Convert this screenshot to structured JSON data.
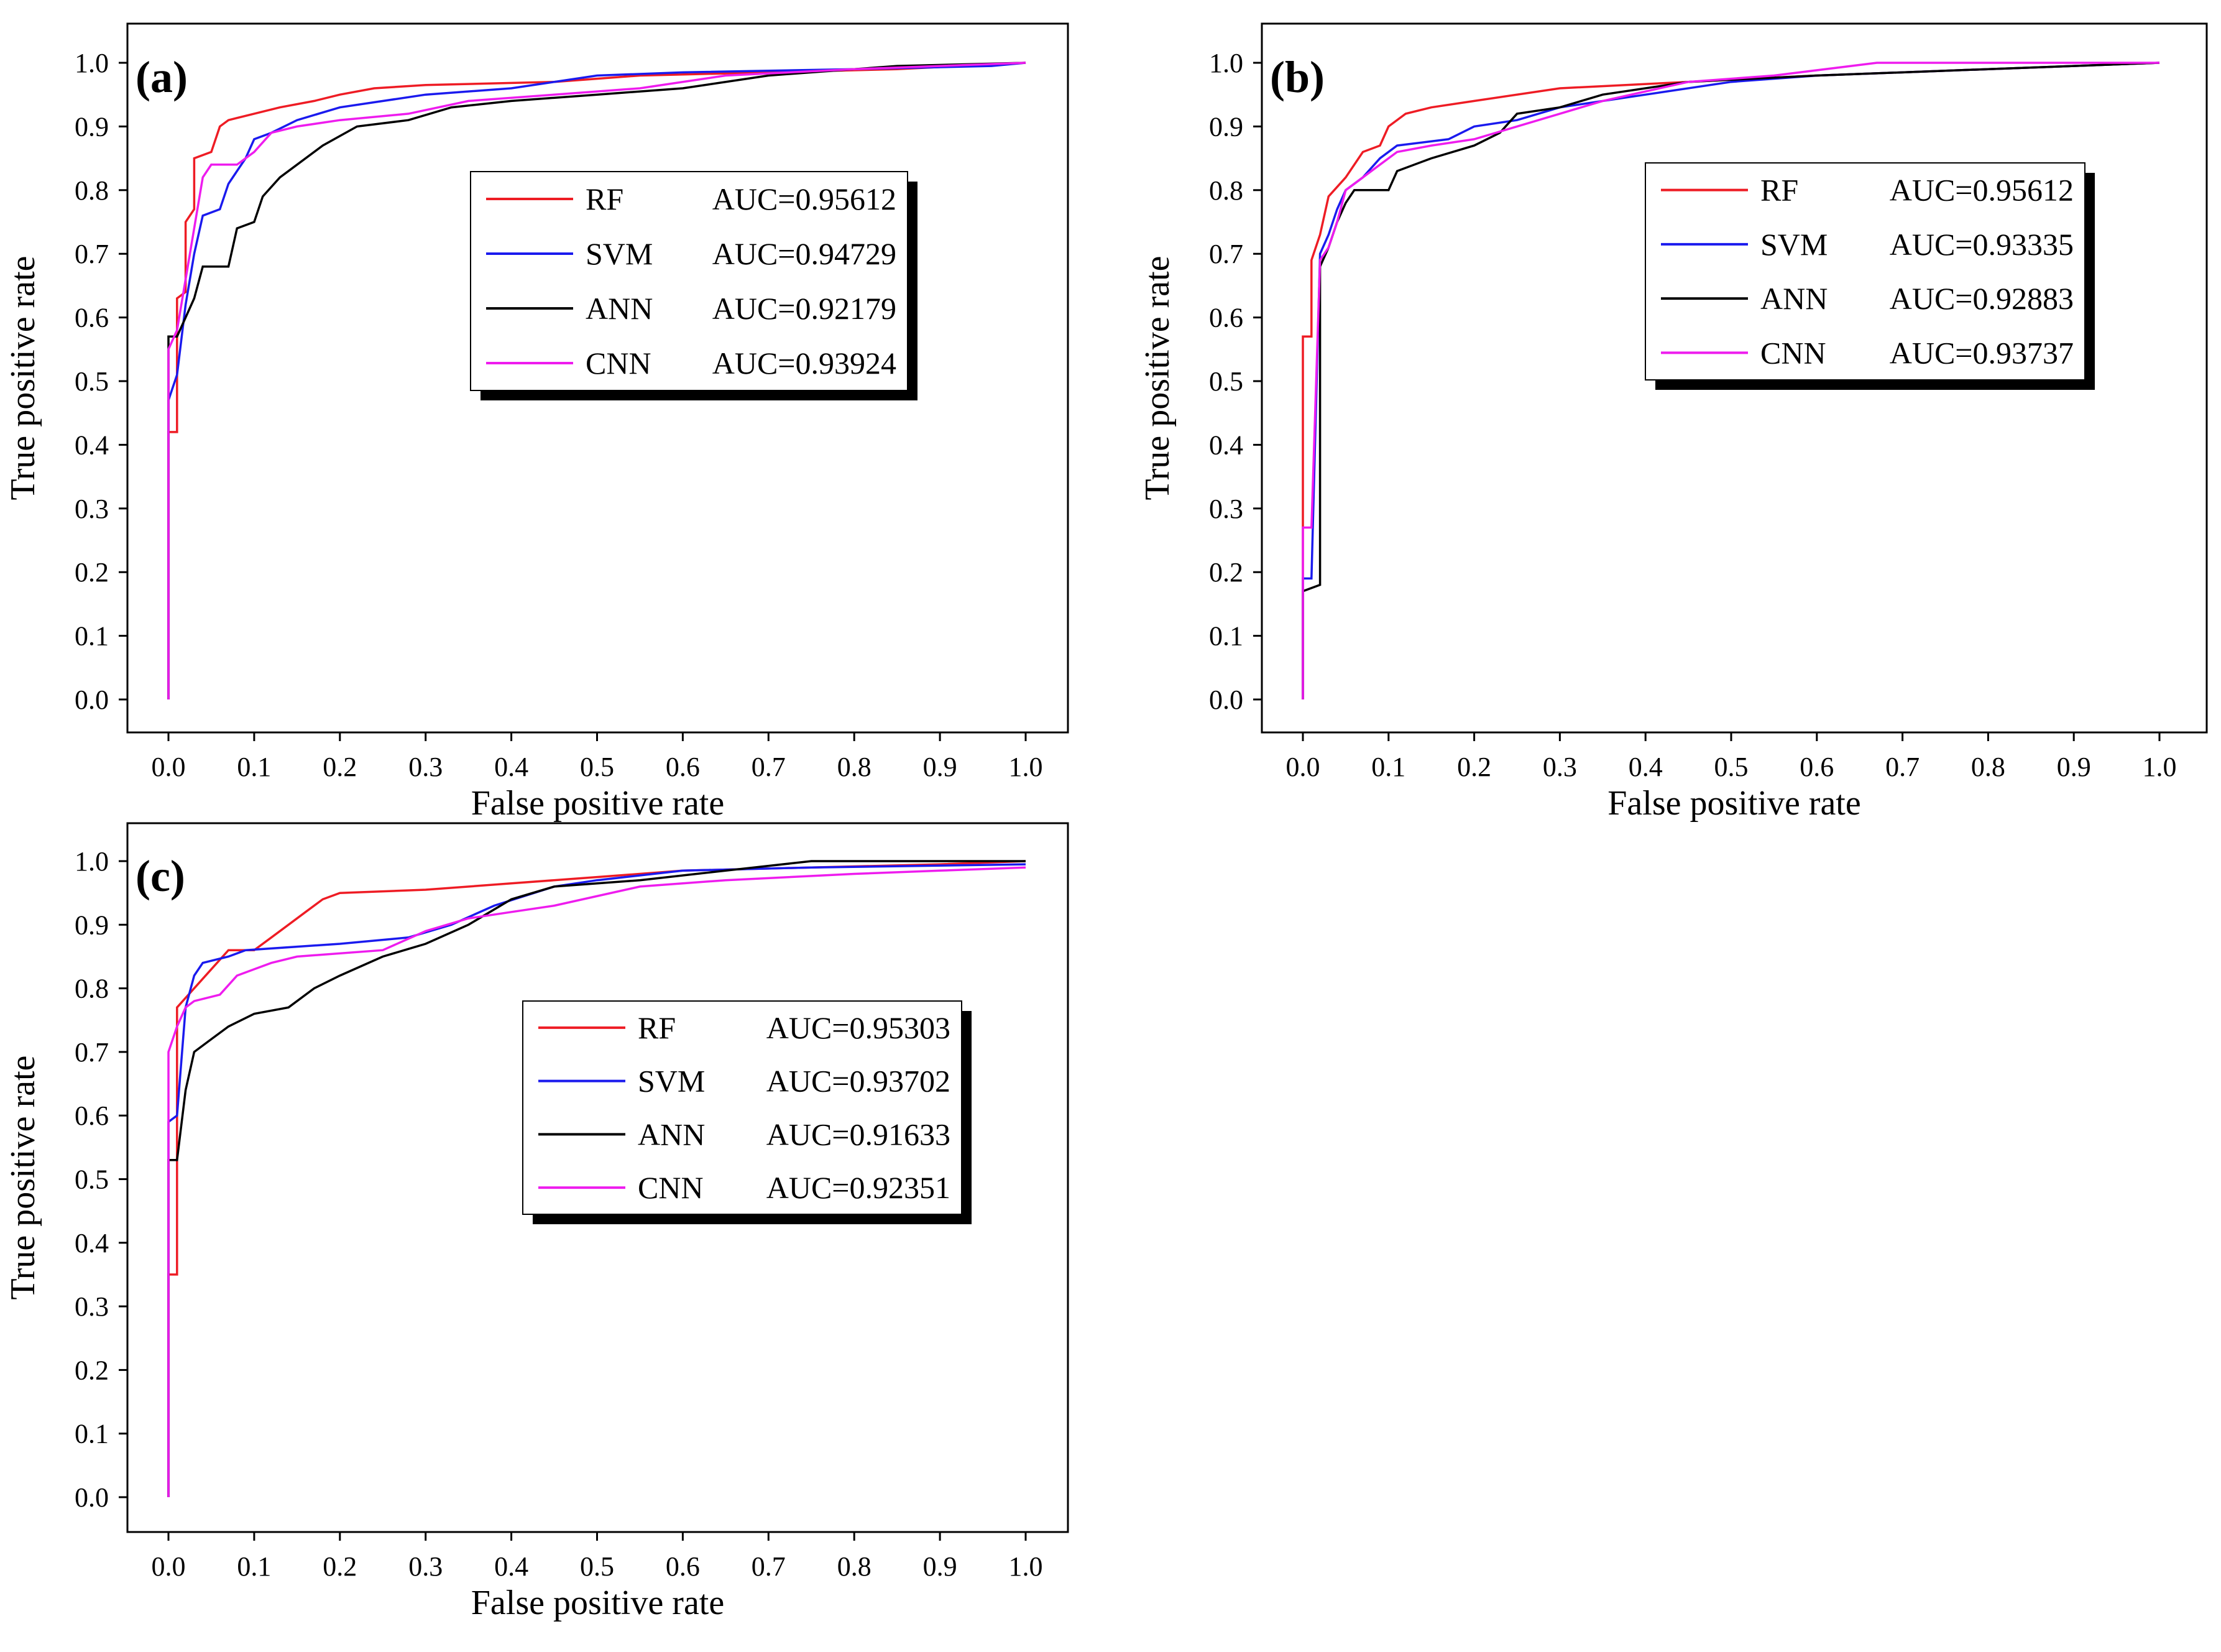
{
  "figure": {
    "description_labels": [
      "(a)",
      "(b)",
      "(c)"
    ]
  },
  "colors": {
    "RF": "#ee1c24",
    "SVM": "#1a1aee",
    "ANN": "#000000",
    "CNN": "#ee1cee"
  },
  "chart_data": [
    {
      "type": "line",
      "panel_label": "(a)",
      "xlabel": "False positive rate",
      "ylabel": "True positive rate",
      "xlim": [
        0,
        1
      ],
      "ylim": [
        0,
        1
      ],
      "xticks": [
        "0.0",
        "0.1",
        "0.2",
        "0.3",
        "0.4",
        "0.5",
        "0.6",
        "0.7",
        "0.8",
        "0.9",
        "1.0"
      ],
      "yticks": [
        "0.0",
        "0.1",
        "0.2",
        "0.3",
        "0.4",
        "0.5",
        "0.6",
        "0.7",
        "0.8",
        "0.9",
        "1.0"
      ],
      "grid": false,
      "legend_position": "center-right",
      "series": [
        {
          "name": "RF",
          "auc_label": "AUC=0.95612",
          "points": [
            [
              0,
              0
            ],
            [
              0,
              0.42
            ],
            [
              0.01,
              0.42
            ],
            [
              0.01,
              0.63
            ],
            [
              0.02,
              0.64
            ],
            [
              0.02,
              0.75
            ],
            [
              0.03,
              0.77
            ],
            [
              0.03,
              0.85
            ],
            [
              0.05,
              0.86
            ],
            [
              0.06,
              0.9
            ],
            [
              0.07,
              0.91
            ],
            [
              0.1,
              0.92
            ],
            [
              0.13,
              0.93
            ],
            [
              0.17,
              0.94
            ],
            [
              0.2,
              0.95
            ],
            [
              0.24,
              0.96
            ],
            [
              0.3,
              0.965
            ],
            [
              0.45,
              0.97
            ],
            [
              0.55,
              0.98
            ],
            [
              0.7,
              0.985
            ],
            [
              0.85,
              0.99
            ],
            [
              1,
              1
            ]
          ]
        },
        {
          "name": "SVM",
          "auc_label": "AUC=0.94729",
          "points": [
            [
              0,
              0
            ],
            [
              0,
              0.47
            ],
            [
              0.01,
              0.51
            ],
            [
              0.02,
              0.62
            ],
            [
              0.03,
              0.7
            ],
            [
              0.04,
              0.76
            ],
            [
              0.06,
              0.77
            ],
            [
              0.07,
              0.81
            ],
            [
              0.09,
              0.85
            ],
            [
              0.1,
              0.88
            ],
            [
              0.12,
              0.89
            ],
            [
              0.15,
              0.91
            ],
            [
              0.2,
              0.93
            ],
            [
              0.3,
              0.95
            ],
            [
              0.4,
              0.96
            ],
            [
              0.5,
              0.98
            ],
            [
              0.6,
              0.985
            ],
            [
              0.8,
              0.99
            ],
            [
              0.96,
              0.995
            ],
            [
              1,
              1
            ]
          ]
        },
        {
          "name": "ANN",
          "auc_label": "AUC=0.92179",
          "points": [
            [
              0,
              0
            ],
            [
              0,
              0.57
            ],
            [
              0.01,
              0.57
            ],
            [
              0.02,
              0.6
            ],
            [
              0.03,
              0.63
            ],
            [
              0.04,
              0.68
            ],
            [
              0.07,
              0.68
            ],
            [
              0.08,
              0.74
            ],
            [
              0.1,
              0.75
            ],
            [
              0.11,
              0.79
            ],
            [
              0.13,
              0.82
            ],
            [
              0.15,
              0.84
            ],
            [
              0.18,
              0.87
            ],
            [
              0.22,
              0.9
            ],
            [
              0.28,
              0.91
            ],
            [
              0.33,
              0.93
            ],
            [
              0.4,
              0.94
            ],
            [
              0.5,
              0.95
            ],
            [
              0.6,
              0.96
            ],
            [
              0.7,
              0.98
            ],
            [
              0.85,
              0.995
            ],
            [
              1,
              1
            ]
          ]
        },
        {
          "name": "CNN",
          "auc_label": "AUC=0.93924",
          "points": [
            [
              0,
              0
            ],
            [
              0,
              0.55
            ],
            [
              0.01,
              0.58
            ],
            [
              0.02,
              0.66
            ],
            [
              0.03,
              0.74
            ],
            [
              0.04,
              0.82
            ],
            [
              0.05,
              0.84
            ],
            [
              0.08,
              0.84
            ],
            [
              0.1,
              0.86
            ],
            [
              0.12,
              0.89
            ],
            [
              0.15,
              0.9
            ],
            [
              0.2,
              0.91
            ],
            [
              0.28,
              0.92
            ],
            [
              0.35,
              0.94
            ],
            [
              0.45,
              0.95
            ],
            [
              0.55,
              0.96
            ],
            [
              0.65,
              0.98
            ],
            [
              0.8,
              0.99
            ],
            [
              1,
              1
            ]
          ]
        }
      ]
    },
    {
      "type": "line",
      "panel_label": "(b)",
      "xlabel": "False positive rate",
      "ylabel": "True positive rate",
      "xlim": [
        0,
        1
      ],
      "ylim": [
        0,
        1
      ],
      "xticks": [
        "0.0",
        "0.1",
        "0.2",
        "0.3",
        "0.4",
        "0.5",
        "0.6",
        "0.7",
        "0.8",
        "0.9",
        "1.0"
      ],
      "yticks": [
        "0.0",
        "0.1",
        "0.2",
        "0.3",
        "0.4",
        "0.5",
        "0.6",
        "0.7",
        "0.8",
        "0.9",
        "1.0"
      ],
      "grid": false,
      "legend_position": "top-right",
      "series": [
        {
          "name": "RF",
          "auc_label": "AUC=0.95612",
          "points": [
            [
              0,
              0
            ],
            [
              0,
              0.57
            ],
            [
              0.01,
              0.57
            ],
            [
              0.01,
              0.69
            ],
            [
              0.02,
              0.73
            ],
            [
              0.03,
              0.79
            ],
            [
              0.05,
              0.82
            ],
            [
              0.07,
              0.86
            ],
            [
              0.09,
              0.87
            ],
            [
              0.1,
              0.9
            ],
            [
              0.12,
              0.92
            ],
            [
              0.15,
              0.93
            ],
            [
              0.2,
              0.94
            ],
            [
              0.3,
              0.96
            ],
            [
              0.45,
              0.97
            ],
            [
              0.6,
              0.98
            ],
            [
              0.8,
              0.99
            ],
            [
              1,
              1
            ]
          ]
        },
        {
          "name": "SVM",
          "auc_label": "AUC=0.93335",
          "points": [
            [
              0,
              0
            ],
            [
              0,
              0.19
            ],
            [
              0.01,
              0.19
            ],
            [
              0.02,
              0.7
            ],
            [
              0.03,
              0.73
            ],
            [
              0.04,
              0.77
            ],
            [
              0.05,
              0.8
            ],
            [
              0.07,
              0.82
            ],
            [
              0.09,
              0.85
            ],
            [
              0.11,
              0.87
            ],
            [
              0.17,
              0.88
            ],
            [
              0.2,
              0.9
            ],
            [
              0.25,
              0.91
            ],
            [
              0.3,
              0.93
            ],
            [
              0.4,
              0.95
            ],
            [
              0.5,
              0.97
            ],
            [
              0.6,
              0.98
            ],
            [
              0.8,
              0.99
            ],
            [
              1,
              1
            ]
          ]
        },
        {
          "name": "ANN",
          "auc_label": "AUC=0.92883",
          "points": [
            [
              0,
              0
            ],
            [
              0,
              0.17
            ],
            [
              0.02,
              0.18
            ],
            [
              0.02,
              0.68
            ],
            [
              0.03,
              0.71
            ],
            [
              0.04,
              0.75
            ],
            [
              0.05,
              0.78
            ],
            [
              0.06,
              0.8
            ],
            [
              0.1,
              0.8
            ],
            [
              0.11,
              0.83
            ],
            [
              0.15,
              0.85
            ],
            [
              0.2,
              0.87
            ],
            [
              0.23,
              0.89
            ],
            [
              0.25,
              0.92
            ],
            [
              0.3,
              0.93
            ],
            [
              0.35,
              0.95
            ],
            [
              0.45,
              0.97
            ],
            [
              0.6,
              0.98
            ],
            [
              0.8,
              0.99
            ],
            [
              0.9,
              0.995
            ],
            [
              1,
              1
            ]
          ]
        },
        {
          "name": "CNN",
          "auc_label": "AUC=0.93737",
          "points": [
            [
              0,
              0
            ],
            [
              0,
              0.27
            ],
            [
              0.01,
              0.27
            ],
            [
              0.02,
              0.69
            ],
            [
              0.03,
              0.71
            ],
            [
              0.04,
              0.75
            ],
            [
              0.05,
              0.8
            ],
            [
              0.07,
              0.82
            ],
            [
              0.09,
              0.84
            ],
            [
              0.11,
              0.86
            ],
            [
              0.15,
              0.87
            ],
            [
              0.2,
              0.88
            ],
            [
              0.25,
              0.9
            ],
            [
              0.3,
              0.92
            ],
            [
              0.35,
              0.94
            ],
            [
              0.45,
              0.97
            ],
            [
              0.55,
              0.98
            ],
            [
              0.67,
              1
            ],
            [
              1,
              1
            ]
          ]
        }
      ]
    },
    {
      "type": "line",
      "panel_label": "(c)",
      "xlabel": "False positive rate",
      "ylabel": "True positive rate",
      "xlim": [
        0,
        1
      ],
      "ylim": [
        0,
        1
      ],
      "xticks": [
        "0.0",
        "0.1",
        "0.2",
        "0.3",
        "0.4",
        "0.5",
        "0.6",
        "0.7",
        "0.8",
        "0.9",
        "1.0"
      ],
      "yticks": [
        "0.0",
        "0.1",
        "0.2",
        "0.3",
        "0.4",
        "0.5",
        "0.6",
        "0.7",
        "0.8",
        "0.9",
        "1.0"
      ],
      "grid": false,
      "legend_position": "center-right",
      "series": [
        {
          "name": "RF",
          "auc_label": "AUC=0.95303",
          "points": [
            [
              0,
              0
            ],
            [
              0,
              0.35
            ],
            [
              0.01,
              0.35
            ],
            [
              0.01,
              0.77
            ],
            [
              0.03,
              0.8
            ],
            [
              0.05,
              0.83
            ],
            [
              0.07,
              0.86
            ],
            [
              0.1,
              0.86
            ],
            [
              0.12,
              0.88
            ],
            [
              0.14,
              0.9
            ],
            [
              0.16,
              0.92
            ],
            [
              0.18,
              0.94
            ],
            [
              0.2,
              0.95
            ],
            [
              0.3,
              0.955
            ],
            [
              0.4,
              0.965
            ],
            [
              0.5,
              0.975
            ],
            [
              0.6,
              0.985
            ],
            [
              0.75,
              0.99
            ],
            [
              0.9,
              0.995
            ],
            [
              1,
              1
            ]
          ]
        },
        {
          "name": "SVM",
          "auc_label": "AUC=0.93702",
          "points": [
            [
              0,
              0
            ],
            [
              0,
              0.59
            ],
            [
              0.01,
              0.6
            ],
            [
              0.02,
              0.77
            ],
            [
              0.03,
              0.82
            ],
            [
              0.04,
              0.84
            ],
            [
              0.07,
              0.85
            ],
            [
              0.09,
              0.86
            ],
            [
              0.2,
              0.87
            ],
            [
              0.28,
              0.88
            ],
            [
              0.33,
              0.9
            ],
            [
              0.38,
              0.93
            ],
            [
              0.45,
              0.96
            ],
            [
              0.5,
              0.97
            ],
            [
              0.6,
              0.985
            ],
            [
              0.75,
              0.99
            ],
            [
              1,
              0.995
            ]
          ]
        },
        {
          "name": "ANN",
          "auc_label": "AUC=0.91633",
          "points": [
            [
              0,
              0
            ],
            [
              0,
              0.53
            ],
            [
              0.01,
              0.53
            ],
            [
              0.02,
              0.64
            ],
            [
              0.03,
              0.7
            ],
            [
              0.05,
              0.72
            ],
            [
              0.07,
              0.74
            ],
            [
              0.1,
              0.76
            ],
            [
              0.14,
              0.77
            ],
            [
              0.17,
              0.8
            ],
            [
              0.2,
              0.82
            ],
            [
              0.25,
              0.85
            ],
            [
              0.3,
              0.87
            ],
            [
              0.35,
              0.9
            ],
            [
              0.4,
              0.94
            ],
            [
              0.45,
              0.96
            ],
            [
              0.55,
              0.97
            ],
            [
              0.65,
              0.985
            ],
            [
              0.75,
              1
            ],
            [
              1,
              1
            ]
          ]
        },
        {
          "name": "CNN",
          "auc_label": "AUC=0.92351",
          "points": [
            [
              0,
              0
            ],
            [
              0,
              0.7
            ],
            [
              0.01,
              0.74
            ],
            [
              0.02,
              0.77
            ],
            [
              0.03,
              0.78
            ],
            [
              0.06,
              0.79
            ],
            [
              0.08,
              0.82
            ],
            [
              0.1,
              0.83
            ],
            [
              0.12,
              0.84
            ],
            [
              0.15,
              0.85
            ],
            [
              0.25,
              0.86
            ],
            [
              0.3,
              0.89
            ],
            [
              0.35,
              0.91
            ],
            [
              0.4,
              0.92
            ],
            [
              0.45,
              0.93
            ],
            [
              0.55,
              0.96
            ],
            [
              0.65,
              0.97
            ],
            [
              0.8,
              0.98
            ],
            [
              0.9,
              0.985
            ],
            [
              1,
              0.99
            ]
          ]
        }
      ]
    }
  ]
}
